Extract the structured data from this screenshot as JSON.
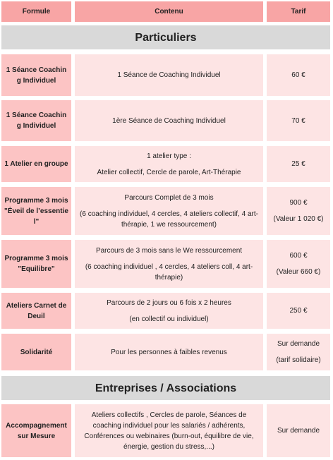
{
  "header": {
    "columns": [
      "Formule",
      "Contenu",
      "Tarif"
    ]
  },
  "sections": [
    {
      "title": "Particuliers",
      "rows": [
        {
          "formule": "1 Séance Coaching Individuel",
          "contenu": [
            "1 Séance de Coaching Individuel"
          ],
          "tarif": [
            "60 €"
          ]
        },
        {
          "formule": "1 Séance Coaching Individuel",
          "contenu": [
            "1ère Séance de Coaching Individuel"
          ],
          "tarif": [
            "70 €"
          ]
        },
        {
          "formule": "1 Atelier en groupe",
          "contenu": [
            "1 atelier type :",
            "Atelier collectif, Cercle de parole, Art-Thérapie"
          ],
          "tarif": [
            "25 €"
          ]
        },
        {
          "formule": "Programme 3 mois \"Éveil de l’essentiel\"",
          "contenu": [
            "Parcours Complet de 3 mois",
            "(6 coaching individuel, 4 cercles, 4 ateliers collectif, 4 art-thérapie, 1 we ressourcement)"
          ],
          "tarif": [
            "900 €",
            "(Valeur 1 020 €)"
          ]
        },
        {
          "formule": "Programme 3 mois \"Equilibre\"",
          "contenu": [
            "Parcours  de 3 mois sans le We ressourcement",
            "(6 coaching individuel , 4 cercles, 4 ateliers coll, 4 art-thérapie)"
          ],
          "tarif": [
            "600 €",
            "(Valeur 660 €)"
          ]
        },
        {
          "formule": "Ateliers Carnet de Deuil",
          "contenu": [
            "Parcours de 2 jours ou 6 fois x 2 heures",
            "(en collectif ou individuel)"
          ],
          "tarif": [
            "250 €"
          ]
        },
        {
          "formule": "Solidarité",
          "contenu": [
            "Pour les personnes à faibles revenus"
          ],
          "tarif": [
            "Sur demande",
            "(tarif solidaire)"
          ]
        }
      ]
    },
    {
      "title": "Entreprises / Associations",
      "rows": [
        {
          "formule": "Accompagnement sur Mesure",
          "contenu": [
            "Ateliers collectifs , Cercles de parole, Séances de coaching individuel pour les salariés / adhérents, Conférences ou webinaires (burn-out, équilibre de vie, énergie, gestion du stress,...)"
          ],
          "tarif": [
            "Sur demande"
          ]
        }
      ]
    }
  ]
}
